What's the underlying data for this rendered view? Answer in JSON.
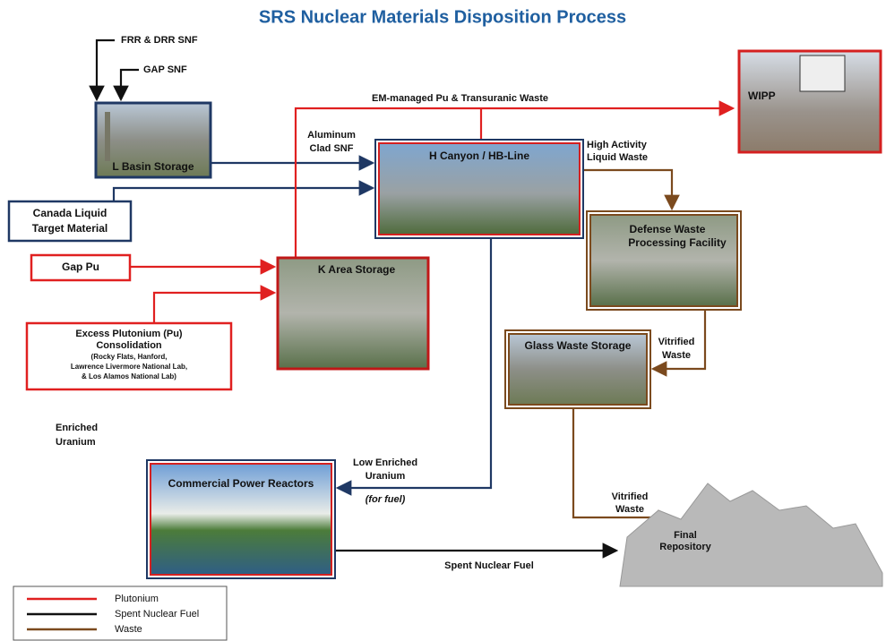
{
  "title": "SRS Nuclear Materials Disposition Process",
  "labels": {
    "frr_drr_snf": "FRR & DRR SNF",
    "gap_snf": "GAP SNF",
    "em_managed": "EM-managed Pu & Transuranic Waste",
    "aluminum_clad_snf": [
      "Aluminum",
      "Clad SNF"
    ],
    "high_activity": [
      "High Activity",
      "Liquid Waste"
    ],
    "vitrified_waste_1": [
      "Vitrified",
      "Waste"
    ],
    "enriched_uranium": [
      "Enriched",
      "Uranium"
    ],
    "low_enriched_uranium": [
      "Low Enriched",
      "Uranium"
    ],
    "for_fuel": "(for fuel)",
    "vitrified_waste_2": [
      "Vitrified",
      "Waste"
    ],
    "spent_nuclear_fuel": "Spent Nuclear Fuel"
  },
  "nodes": {
    "wipp": "WIPP",
    "l_basin": "L Basin Storage",
    "h_canyon": "H Canyon / HB-Line",
    "canada": [
      "Canada Liquid",
      "Target Material"
    ],
    "dwpf": [
      "Defense Waste",
      "Processing Facility"
    ],
    "gap_pu": "Gap Pu",
    "k_area": "K Area Storage",
    "excess_pu": [
      "Excess Plutonium (Pu)",
      "Consolidation"
    ],
    "excess_pu_note": [
      "(Rocky Flats, Hanford,",
      "Lawrence Livermore National Lab,",
      "& Los Alamos National Lab)"
    ],
    "glass_waste": "Glass Waste Storage",
    "commercial": "Commercial Power Reactors",
    "final_repository": [
      "Final",
      "Repository"
    ]
  },
  "legend": [
    "Plutonium",
    "Spent Nuclear Fuel",
    "Waste"
  ]
}
